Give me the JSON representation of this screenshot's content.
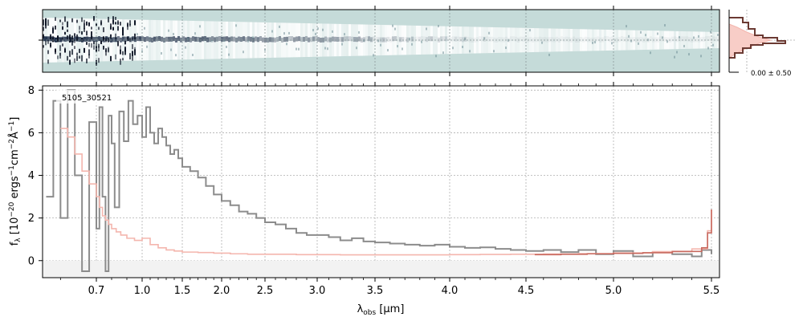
{
  "chart_data": [
    {
      "type": "heatmap",
      "panel": "2D spectrum",
      "background_color": "#c5dbd9",
      "trace_color": "#1a2a44",
      "description_note": null
    },
    {
      "type": "step",
      "panel": "profile",
      "annotation": "0.00 ± 0.50",
      "series_colors": [
        "#6b3a33",
        "#f4b6ae"
      ]
    },
    {
      "type": "line",
      "panel": "1D spectrum",
      "label": "5105_30521",
      "xlabel": "λobs [μm]",
      "xlabel_html": [
        "λ",
        "obs",
        " [μm]"
      ],
      "ylabel": "fλ [10−20 ergs−1cm−2Å−1]",
      "ylabel_parts": [
        "f",
        "λ",
        " [10",
        "−20",
        " ergs",
        "−1",
        "cm",
        "−2",
        "Å",
        "−1",
        "]"
      ],
      "xlim": [
        0.55,
        5.52
      ],
      "ylim": [
        -0.8,
        8.2
      ],
      "x_scale": "reciprocal-like (pixel-based)",
      "xticks": [
        0.7,
        1.0,
        1.5,
        2.0,
        2.5,
        3.0,
        3.5,
        4.0,
        4.5,
        5.0,
        5.5
      ],
      "xtick_labels": [
        "0.7",
        "1.0",
        "1.5",
        "2.0",
        "2.5",
        "3.0",
        "3.5",
        "4.0",
        "4.5",
        "5.0",
        "5.5"
      ],
      "yticks": [
        0,
        2,
        4,
        6,
        8
      ],
      "ytick_labels": [
        "0",
        "2",
        "4",
        "6",
        "8"
      ],
      "grid": true,
      "series": [
        {
          "color": "#8c8c8c",
          "x": [
            0.56,
            0.58,
            0.6,
            0.62,
            0.64,
            0.66,
            0.68,
            0.7,
            0.72,
            0.74,
            0.76,
            0.78,
            0.8,
            0.82,
            0.85,
            0.88,
            0.91,
            0.94,
            0.97,
            1.0,
            1.05,
            1.1,
            1.15,
            1.2,
            1.25,
            1.3,
            1.35,
            1.4,
            1.45,
            1.5,
            1.6,
            1.7,
            1.8,
            1.9,
            2.0,
            2.1,
            2.2,
            2.3,
            2.4,
            2.5,
            2.6,
            2.7,
            2.8,
            2.9,
            3.0,
            3.1,
            3.2,
            3.3,
            3.4,
            3.5,
            3.6,
            3.7,
            3.8,
            3.9,
            4.0,
            4.1,
            4.2,
            4.3,
            4.4,
            4.5,
            4.6,
            4.7,
            4.8,
            4.9,
            5.0,
            5.1,
            5.2,
            5.3,
            5.4,
            5.45,
            5.5
          ],
          "y": [
            3.0,
            7.5,
            2.0,
            8.0,
            4.0,
            -0.5,
            6.5,
            1.5,
            7.2,
            3.0,
            -0.5,
            6.8,
            5.5,
            2.5,
            7.0,
            5.6,
            7.5,
            6.4,
            6.8,
            5.8,
            7.2,
            6.0,
            5.5,
            6.2,
            5.8,
            5.4,
            5.0,
            5.2,
            4.8,
            4.4,
            4.2,
            3.9,
            3.5,
            3.1,
            2.8,
            2.6,
            2.3,
            2.2,
            2.0,
            1.8,
            1.7,
            1.5,
            1.3,
            1.2,
            1.2,
            1.1,
            0.95,
            1.05,
            0.9,
            0.85,
            0.8,
            0.75,
            0.7,
            0.75,
            0.65,
            0.6,
            0.62,
            0.55,
            0.5,
            0.45,
            0.5,
            0.4,
            0.5,
            0.3,
            0.45,
            0.2,
            0.4,
            0.3,
            0.2,
            0.5,
            0.3
          ]
        },
        {
          "color": "#f4b6ae",
          "x": [
            0.6,
            0.62,
            0.64,
            0.66,
            0.68,
            0.7,
            0.72,
            0.74,
            0.76,
            0.78,
            0.8,
            0.83,
            0.86,
            0.9,
            0.95,
            1.0,
            1.1,
            1.2,
            1.3,
            1.4,
            1.5,
            1.7,
            1.9,
            2.1,
            2.3,
            2.5,
            2.8,
            3.0,
            3.2,
            3.5,
            3.8,
            4.0,
            4.2,
            4.4,
            4.6,
            4.8,
            5.0,
            5.2,
            5.4,
            5.48,
            5.5
          ],
          "y": [
            6.2,
            5.8,
            5.0,
            4.2,
            3.6,
            3.0,
            2.5,
            2.1,
            1.9,
            1.7,
            1.5,
            1.35,
            1.2,
            1.05,
            0.95,
            1.05,
            0.75,
            0.6,
            0.5,
            0.45,
            0.4,
            0.38,
            0.35,
            0.32,
            0.3,
            0.3,
            0.28,
            0.28,
            0.27,
            0.27,
            0.27,
            0.28,
            0.29,
            0.3,
            0.31,
            0.33,
            0.36,
            0.42,
            0.55,
            1.4,
            2.4
          ]
        },
        {
          "color": "#c86a5f",
          "x": [
            4.55,
            4.7,
            4.85,
            5.0,
            5.15,
            5.3,
            5.45,
            5.48,
            5.5
          ],
          "y": [
            0.28,
            0.3,
            0.32,
            0.34,
            0.37,
            0.43,
            0.6,
            1.3,
            2.4
          ]
        }
      ]
    }
  ]
}
